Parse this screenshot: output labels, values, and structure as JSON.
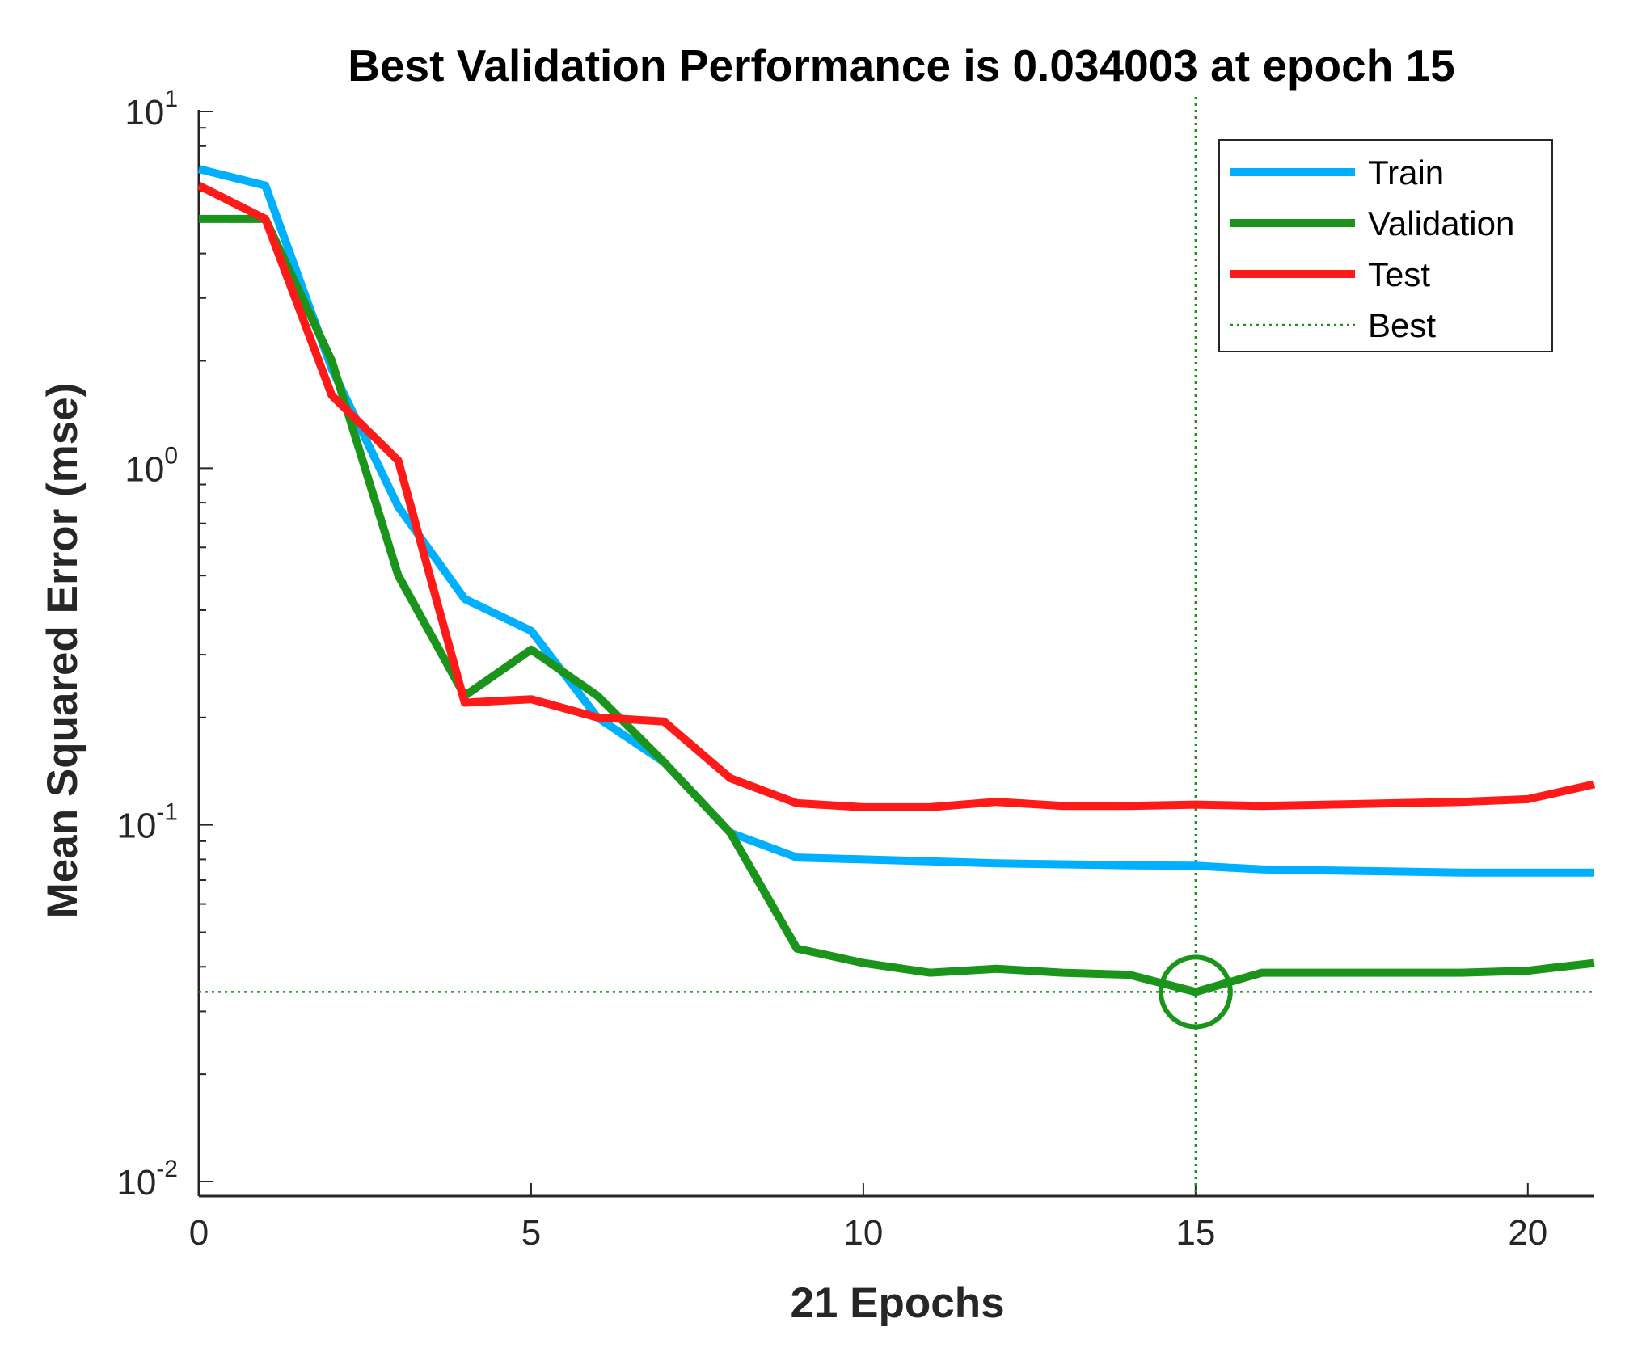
{
  "chart_data": {
    "type": "line",
    "title": "Best Validation Performance is 0.034003 at epoch 15",
    "xlabel": "21 Epochs",
    "ylabel": "Mean Squared Error  (mse)",
    "xlim": [
      0,
      21
    ],
    "ylim": [
      0.01,
      10
    ],
    "yscale": "log",
    "x_ticks": [
      0,
      5,
      10,
      15,
      20
    ],
    "y_ticks": [
      {
        "value": 10,
        "base": "10",
        "exp": "1"
      },
      {
        "value": 1,
        "base": "10",
        "exp": "0"
      },
      {
        "value": 0.1,
        "base": "10",
        "exp": "-1"
      },
      {
        "value": 0.01,
        "base": "10",
        "exp": "-2"
      }
    ],
    "x": [
      0,
      1,
      2,
      3,
      4,
      5,
      6,
      7,
      8,
      9,
      10,
      11,
      12,
      13,
      14,
      15,
      16,
      17,
      18,
      19,
      20,
      21
    ],
    "series": [
      {
        "name": "Train",
        "color": "#00B0FF",
        "values": [
          6.9,
          6.2,
          1.9,
          0.78,
          0.43,
          0.35,
          0.2,
          0.15,
          0.095,
          0.081,
          0.08,
          0.079,
          0.078,
          0.0775,
          0.077,
          0.0768,
          0.075,
          0.0745,
          0.074,
          0.0735,
          0.0735,
          0.0735
        ]
      },
      {
        "name": "Validation",
        "color": "#1A941A",
        "values": [
          5.0,
          5.0,
          2.0,
          0.5,
          0.23,
          0.31,
          0.23,
          0.15,
          0.095,
          0.045,
          0.041,
          0.0385,
          0.0395,
          0.0385,
          0.038,
          0.034,
          0.0385,
          0.0385,
          0.0385,
          0.0385,
          0.039,
          0.041
        ]
      },
      {
        "name": "Test",
        "color": "#FF1A1A",
        "values": [
          6.2,
          5.0,
          1.6,
          1.05,
          0.22,
          0.225,
          0.2,
          0.195,
          0.135,
          0.115,
          0.112,
          0.112,
          0.116,
          0.113,
          0.113,
          0.114,
          0.113,
          0.114,
          0.115,
          0.116,
          0.118,
          0.13
        ]
      }
    ],
    "best": {
      "name": "Best",
      "epoch": 15,
      "value": 0.034003,
      "color": "#1A941A"
    },
    "legend": {
      "placement": "top-right",
      "entries": [
        "Train",
        "Validation",
        "Test",
        "Best"
      ]
    },
    "grid": false
  }
}
